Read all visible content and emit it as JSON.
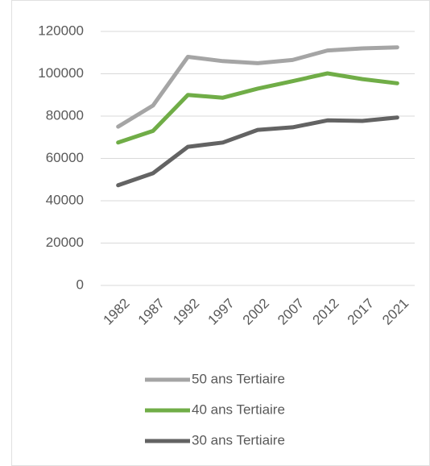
{
  "chart_data": {
    "type": "line",
    "categories": [
      "1982",
      "1987",
      "1992",
      "1997",
      "2002",
      "2007",
      "2012",
      "2017",
      "2021"
    ],
    "series": [
      {
        "name": "50 ans Tertiaire",
        "color": "#a5a5a5",
        "values": [
          75000,
          85000,
          108000,
          106000,
          105000,
          106500,
          111000,
          112000,
          112500
        ]
      },
      {
        "name": "40 ans Tertiaire",
        "color": "#70ad47",
        "values": [
          67500,
          73000,
          90000,
          88700,
          93000,
          96500,
          100200,
          97500,
          95500
        ]
      },
      {
        "name": "30 ans Tertiaire",
        "color": "#636363",
        "values": [
          47300,
          53000,
          65500,
          67500,
          73500,
          74700,
          78000,
          77700,
          79300
        ]
      }
    ],
    "ylim": [
      0,
      120000
    ],
    "yticks": [
      0,
      20000,
      40000,
      60000,
      80000,
      100000,
      120000
    ],
    "grid": true,
    "legend": "bottom"
  }
}
